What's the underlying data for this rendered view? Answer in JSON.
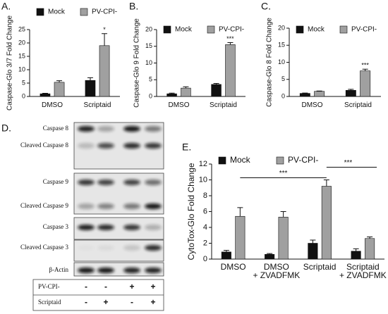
{
  "chart_data": [
    {
      "type": "bar",
      "label": "A.",
      "ylabel": "Caspase-Glo 3/7 Fold Change",
      "categories": [
        [
          "DMSO"
        ],
        [
          "Scriptaid"
        ]
      ],
      "series": [
        {
          "name": "Mock",
          "color": "#111111",
          "values": [
            1,
            6
          ],
          "errors": [
            0.2,
            1
          ]
        },
        {
          "name": "PV-CPI-",
          "color": "#a0a0a0",
          "values": [
            5.3,
            19
          ],
          "errors": [
            0.6,
            4.5
          ]
        }
      ],
      "ylim": [
        0,
        25
      ],
      "yticks": [
        0,
        5,
        10,
        15,
        20,
        25
      ],
      "annotations": [
        "*"
      ]
    },
    {
      "type": "bar",
      "label": "B.",
      "ylabel": "Caspase-Glo 9 Fold Change",
      "categories": [
        [
          "DMSO"
        ],
        [
          "Scriptaid"
        ]
      ],
      "series": [
        {
          "name": "Mock",
          "color": "#111111",
          "values": [
            0.8,
            3.6
          ],
          "errors": [
            0.2,
            0.3
          ]
        },
        {
          "name": "PV-CPI-",
          "color": "#a0a0a0",
          "values": [
            2.5,
            15.5
          ],
          "errors": [
            0.4,
            0.6
          ]
        }
      ],
      "ylim": [
        0,
        20
      ],
      "yticks": [
        0,
        5,
        10,
        15,
        20
      ],
      "annotations": [
        "***"
      ]
    },
    {
      "type": "bar",
      "label": "C.",
      "ylabel": "Caspase-Glo 8 Fold Change",
      "categories": [
        [
          "DMSO"
        ],
        [
          "Scriptaid"
        ]
      ],
      "series": [
        {
          "name": "Mock",
          "color": "#111111",
          "values": [
            0.9,
            1.8
          ],
          "errors": [
            0.1,
            0.3
          ]
        },
        {
          "name": "PV-CPI-",
          "color": "#a0a0a0",
          "values": [
            1.5,
            7.5
          ],
          "errors": [
            0.1,
            0.5
          ]
        }
      ],
      "ylim": [
        0,
        20
      ],
      "yticks": [
        0,
        5,
        10,
        15,
        20
      ],
      "annotations": [
        "***"
      ]
    },
    {
      "type": "bar",
      "label": "E.",
      "ylabel": "CytoTox-Glo Fold Change",
      "categories": [
        [
          "DMSO"
        ],
        [
          "DMSO",
          "+ ZVADFMK"
        ],
        [
          "Scriptaid"
        ],
        [
          "Scriptaid",
          "+ ZVADFMK"
        ]
      ],
      "series": [
        {
          "name": "Mock",
          "color": "#111111",
          "values": [
            0.9,
            0.6,
            2.0,
            1.0
          ],
          "errors": [
            0.2,
            0.1,
            0.4,
            0.3
          ]
        },
        {
          "name": "PV-CPI-",
          "color": "#a0a0a0",
          "values": [
            5.4,
            5.3,
            9.2,
            2.6
          ],
          "errors": [
            1.1,
            0.7,
            0.8,
            0.2
          ]
        }
      ],
      "ylim": [
        0,
        12
      ],
      "yticks": [
        0,
        2,
        4,
        6,
        8,
        10,
        12
      ],
      "annotations": [
        "***",
        "***"
      ]
    }
  ],
  "blot": {
    "label": "D.",
    "bands": [
      "Caspase 8",
      "Cleaved Caspase 8",
      "Caspase 9",
      "Cleaved Caspase 9",
      "Caspase 3",
      "Cleaved Caspase 3",
      "β-Actin"
    ],
    "rows": [
      {
        "name": "PV-CPI-",
        "signs": [
          "-",
          "-",
          "+",
          "+"
        ]
      },
      {
        "name": "Scriptaid",
        "signs": [
          "-",
          "+",
          "-",
          "+"
        ]
      }
    ]
  }
}
